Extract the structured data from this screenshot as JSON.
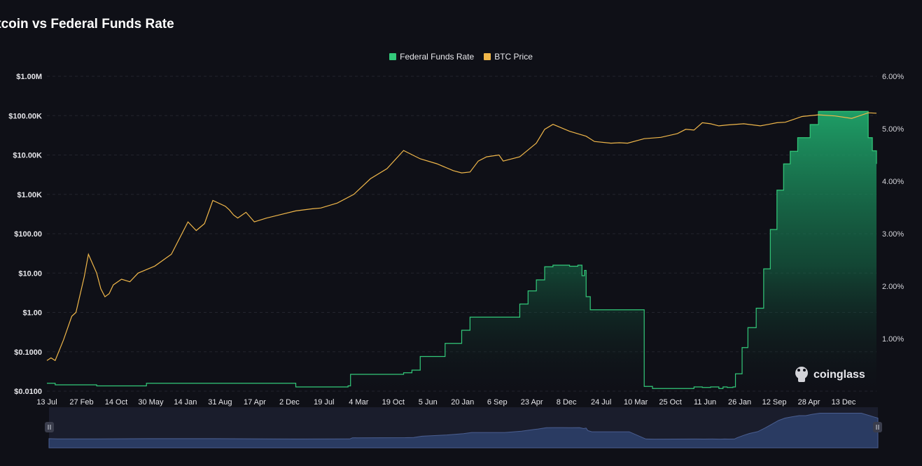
{
  "title": "itcoin vs Federal Funds Rate",
  "legend": [
    {
      "label": "Federal Funds Rate",
      "color": "#33c97a"
    },
    {
      "label": "BTC Price",
      "color": "#f0b74a"
    }
  ],
  "watermark": "coinglass",
  "colors": {
    "background": "#0f1017",
    "grid": "#23242e",
    "ffr": "#33c97a",
    "btc": "#f0b74a",
    "navigator": "#2a3b62"
  },
  "chart_data": {
    "type": "line",
    "title": "itcoin vs Federal Funds Rate",
    "x_ticks": [
      "13 Jul",
      "27 Feb",
      "14 Oct",
      "30 May",
      "14 Jan",
      "31 Aug",
      "17 Apr",
      "2 Dec",
      "19 Jul",
      "4 Mar",
      "19 Oct",
      "5 Jun",
      "20 Jan",
      "6 Sep",
      "23 Apr",
      "8 Dec",
      "24 Jul",
      "10 Mar",
      "25 Oct",
      "11 Jun",
      "26 Jan",
      "12 Sep",
      "28 Apr",
      "13 Dec"
    ],
    "y_left": {
      "scale": "log",
      "ticks": [
        "$1.00M",
        "$100.00K",
        "$10.00K",
        "$1.00K",
        "$100.00",
        "$10.00",
        "$1.00",
        "$0.1000",
        "$0.0100"
      ],
      "range": [
        0.01,
        1000000
      ]
    },
    "y_right": {
      "scale": "linear",
      "ticks": [
        "6.00%",
        "5.00%",
        "4.00%",
        "3.00%",
        "2.00%",
        "1.00%"
      ],
      "range": [
        0,
        6
      ]
    },
    "grid": true,
    "legend_position": "top-center",
    "series": [
      {
        "name": "Federal Funds Rate",
        "type": "area",
        "axis": "right",
        "t": [
          0,
          0.01,
          0.06,
          0.12,
          0.2,
          0.3,
          0.363,
          0.366,
          0.43,
          0.44,
          0.45,
          0.48,
          0.5,
          0.51,
          0.53,
          0.54,
          0.55,
          0.57,
          0.58,
          0.59,
          0.6,
          0.61,
          0.62,
          0.63,
          0.64,
          0.645,
          0.648,
          0.65,
          0.655,
          0.7,
          0.72,
          0.73,
          0.78,
          0.79,
          0.8,
          0.81,
          0.815,
          0.82,
          0.827,
          0.83,
          0.838,
          0.845,
          0.855,
          0.864,
          0.872,
          0.88,
          0.888,
          0.896,
          0.905,
          0.913,
          0.92,
          0.93,
          0.94,
          0.945,
          0.95,
          0.96,
          0.963,
          0.97,
          0.975,
          0.98,
          0.99,
          0.995,
          1.0
        ],
        "values": [
          0.15,
          0.12,
          0.1,
          0.15,
          0.15,
          0.08,
          0.1,
          0.32,
          0.35,
          0.4,
          0.66,
          0.91,
          1.16,
          1.41,
          1.41,
          1.41,
          1.41,
          1.66,
          1.91,
          2.12,
          2.37,
          2.4,
          2.4,
          2.38,
          2.4,
          2.2,
          2.3,
          1.8,
          1.55,
          1.55,
          0.09,
          0.05,
          0.08,
          0.07,
          0.08,
          0.05,
          0.08,
          0.07,
          0.08,
          0.33,
          0.83,
          1.21,
          1.58,
          2.33,
          3.08,
          3.83,
          4.33,
          4.57,
          4.83,
          4.83,
          5.08,
          5.33,
          5.33,
          5.33,
          5.33,
          5.33,
          5.33,
          5.33,
          5.33,
          5.33,
          4.83,
          4.58,
          4.33
        ]
      },
      {
        "name": "BTC Price",
        "type": "line",
        "axis": "left",
        "t": [
          0,
          0.005,
          0.01,
          0.02,
          0.03,
          0.035,
          0.045,
          0.05,
          0.06,
          0.065,
          0.07,
          0.075,
          0.08,
          0.09,
          0.1,
          0.11,
          0.13,
          0.15,
          0.17,
          0.18,
          0.19,
          0.2,
          0.215,
          0.22,
          0.225,
          0.23,
          0.24,
          0.25,
          0.265,
          0.28,
          0.3,
          0.32,
          0.33,
          0.35,
          0.37,
          0.39,
          0.41,
          0.43,
          0.45,
          0.47,
          0.49,
          0.5,
          0.51,
          0.52,
          0.53,
          0.545,
          0.55,
          0.57,
          0.59,
          0.6,
          0.61,
          0.63,
          0.65,
          0.66,
          0.68,
          0.69,
          0.7,
          0.72,
          0.74,
          0.76,
          0.77,
          0.78,
          0.79,
          0.8,
          0.81,
          0.82,
          0.84,
          0.86,
          0.87,
          0.88,
          0.89,
          0.9,
          0.91,
          0.93,
          0.95,
          0.97,
          0.98,
          0.99,
          1.0
        ],
        "values": [
          0.06,
          0.07,
          0.06,
          0.2,
          0.8,
          1.0,
          8,
          30,
          10,
          4,
          2.5,
          3,
          5,
          7,
          6,
          10,
          15,
          30,
          200,
          120,
          180,
          700,
          500,
          400,
          300,
          250,
          350,
          200,
          250,
          300,
          380,
          430,
          450,
          600,
          1000,
          2500,
          4500,
          13000,
          8000,
          6000,
          4000,
          3500,
          3700,
          7000,
          9000,
          10000,
          7000,
          9000,
          20000,
          45000,
          60000,
          40000,
          30000,
          22000,
          20000,
          20500,
          20000,
          26000,
          28000,
          35000,
          45000,
          43000,
          66000,
          62000,
          55000,
          58000,
          62000,
          55000,
          60000,
          66000,
          68000,
          80000,
          95000,
          105000,
          98000,
          85000,
          100000,
          118000,
          115000
        ]
      }
    ]
  }
}
